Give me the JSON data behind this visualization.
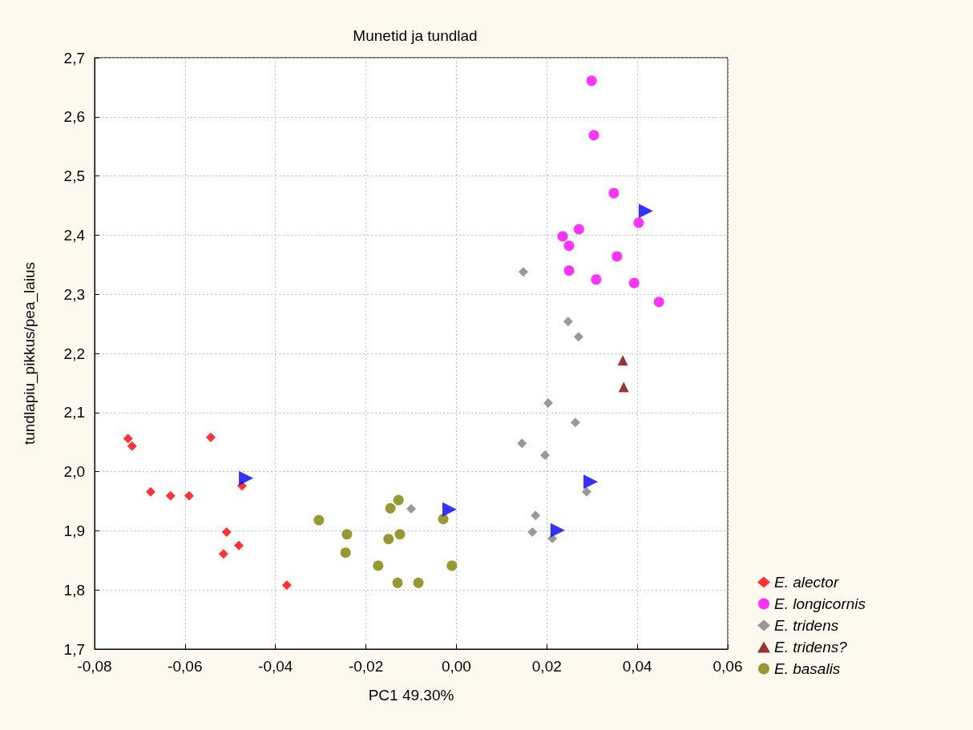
{
  "chart_data": {
    "type": "scatter",
    "title": "Munetid ja tundlad",
    "xlabel": "PC1 49.30%",
    "ylabel": "tundlapiu_pikkus/pea_laius",
    "xlim": [
      -0.08,
      0.06
    ],
    "ylim": [
      1.7,
      2.7
    ],
    "xticks": [
      {
        "value": -0.08,
        "label": "-0,08"
      },
      {
        "value": -0.06,
        "label": "-0,06"
      },
      {
        "value": -0.04,
        "label": "-0,04"
      },
      {
        "value": -0.02,
        "label": "-0,02"
      },
      {
        "value": 0,
        "label": "0,00"
      },
      {
        "value": 0.02,
        "label": "0,02"
      },
      {
        "value": 0.04,
        "label": "0,04"
      },
      {
        "value": 0.06,
        "label": "0,06"
      }
    ],
    "yticks": [
      {
        "value": 1.7,
        "label": "1,7"
      },
      {
        "value": 1.8,
        "label": "1,8"
      },
      {
        "value": 1.9,
        "label": "1,9"
      },
      {
        "value": 2.0,
        "label": "2,0"
      },
      {
        "value": 2.1,
        "label": "2,1"
      },
      {
        "value": 2.2,
        "label": "2,2"
      },
      {
        "value": 2.3,
        "label": "2,3"
      },
      {
        "value": 2.4,
        "label": "2,4"
      },
      {
        "value": 2.5,
        "label": "2,5"
      },
      {
        "value": 2.6,
        "label": "2,6"
      },
      {
        "value": 2.7,
        "label": "2,7"
      }
    ],
    "grid": true,
    "legend": "bottom right",
    "series": [
      {
        "name": "E. alector",
        "color": "#ff0000",
        "marker": "diamond",
        "x": [
          -0.0726,
          -0.0717,
          -0.0676,
          -0.0632,
          -0.0591,
          -0.0543,
          -0.0474,
          -0.0508,
          -0.0515,
          -0.0481,
          -0.0375
        ],
        "values": [
          2.056,
          2.043,
          1.966,
          1.959,
          1.959,
          2.058,
          1.976,
          1.898,
          1.861,
          1.875,
          1.808
        ]
      },
      {
        "name": "E. longicornis",
        "color": "#ff00ff",
        "marker": "circle",
        "x": [
          0.0299,
          0.0304,
          0.0348,
          0.0403,
          0.0271,
          0.0235,
          0.0249,
          0.0355,
          0.0249,
          0.0309,
          0.0393,
          0.0448
        ],
        "values": [
          2.661,
          2.569,
          2.471,
          2.421,
          2.41,
          2.398,
          2.382,
          2.364,
          2.34,
          2.325,
          2.319,
          2.287
        ]
      },
      {
        "name": "E. tridens",
        "color": "#808080",
        "marker": "diamond",
        "x": [
          0.0148,
          0.0247,
          0.027,
          0.0203,
          0.0263,
          0.0145,
          0.0196,
          0.0288,
          0.0175,
          0.0168,
          0.0212,
          -0.01
        ],
        "values": [
          2.338,
          2.254,
          2.228,
          2.116,
          2.083,
          2.048,
          2.028,
          1.966,
          1.926,
          1.898,
          1.887,
          1.937
        ]
      },
      {
        "name": "E. tridens?",
        "color": "#800000",
        "marker": "triangle",
        "x": [
          0.0368,
          0.037
        ],
        "values": [
          2.188,
          2.143
        ]
      },
      {
        "name": "E. basalis",
        "color": "#808000",
        "marker": "circle",
        "x": [
          -0.0304,
          -0.0242,
          -0.0245,
          -0.0128,
          -0.0146,
          -0.0125,
          -0.015,
          -0.0173,
          -0.013,
          -0.0084,
          -0.0029,
          -0.001
        ],
        "values": [
          1.918,
          1.894,
          1.863,
          1.952,
          1.938,
          1.894,
          1.886,
          1.841,
          1.812,
          1.812,
          1.92,
          1.841
        ]
      },
      {
        "color": "#0000ff",
        "marker": "triangle-right",
        "x": [
          -0.0465,
          -0.0015,
          0.0419,
          0.0297,
          0.0224
        ],
        "values": [
          1.989,
          1.936,
          2.441,
          1.983,
          1.901
        ]
      }
    ]
  }
}
